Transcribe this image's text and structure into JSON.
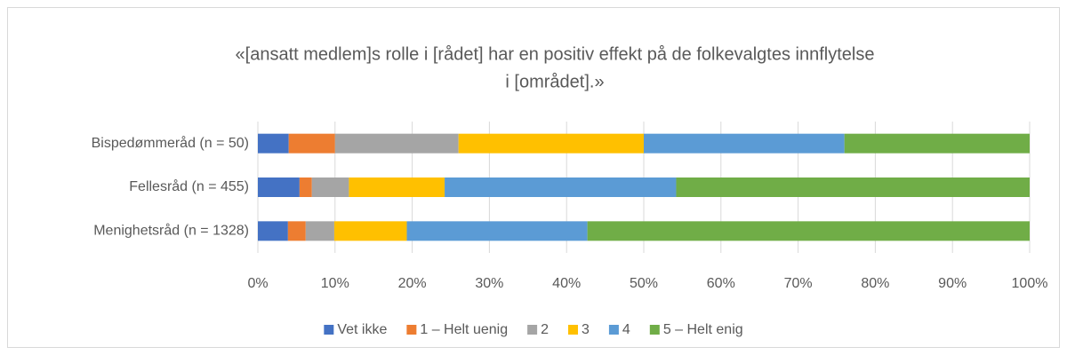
{
  "chart_data": {
    "type": "stacked_barh",
    "title": [
      "«[ansatt medlem]s rolle i [rådet] har en positiv effekt på de folkevalgtes innflytelse",
      "i [området].»"
    ],
    "categories": [
      "Bispedømmeråd (n = 50)",
      "Fellesråd (n = 455)",
      "Menighetsråd (n = 1328)"
    ],
    "series": [
      {
        "name": "Vet ikke",
        "color": "#4472c4",
        "values": [
          4,
          5.4,
          3.9
        ]
      },
      {
        "name": "1 – Helt uenig",
        "color": "#ed7d31",
        "values": [
          6,
          1.6,
          2.3
        ]
      },
      {
        "name": "2",
        "color": "#a5a5a5",
        "values": [
          16,
          4.8,
          3.7
        ]
      },
      {
        "name": "3",
        "color": "#ffc000",
        "values": [
          24,
          12.4,
          9.4
        ]
      },
      {
        "name": "4",
        "color": "#5b9bd5",
        "values": [
          26,
          30,
          23.4
        ]
      },
      {
        "name": "5 – Helt enig",
        "color": "#70ad47",
        "values": [
          24,
          45.8,
          57.3
        ]
      }
    ],
    "xlim": [
      0,
      100
    ],
    "xticks": [
      {
        "value": 0,
        "label": "0%"
      },
      {
        "value": 10,
        "label": "10%"
      },
      {
        "value": 20,
        "label": "20%"
      },
      {
        "value": 30,
        "label": "30%"
      },
      {
        "value": 40,
        "label": "40%"
      },
      {
        "value": 50,
        "label": "50%"
      },
      {
        "value": 60,
        "label": "60%"
      },
      {
        "value": 70,
        "label": "70%"
      },
      {
        "value": 80,
        "label": "80%"
      },
      {
        "value": 90,
        "label": "90%"
      },
      {
        "value": 100,
        "label": "100%"
      }
    ],
    "grid": true,
    "legend": "bottom"
  }
}
